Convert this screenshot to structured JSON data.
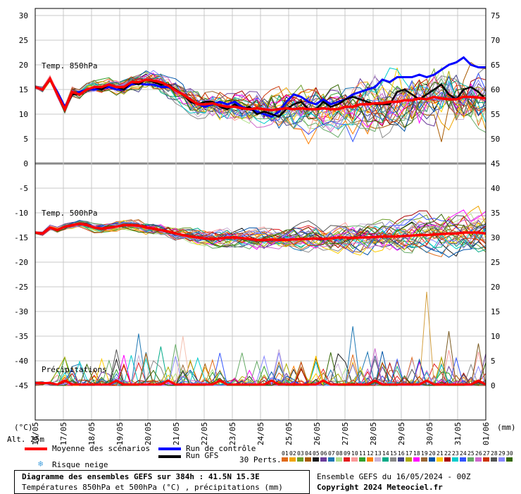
{
  "chart_data": {
    "type": "line",
    "x": [
      "16/05",
      "17/05",
      "18/05",
      "19/05",
      "20/05",
      "21/05",
      "22/05",
      "23/05",
      "24/05",
      "25/05",
      "26/05",
      "27/05",
      "28/05",
      "29/05",
      "30/05",
      "31/05",
      "01/06"
    ],
    "left_axis": {
      "unit": "(°C)",
      "ticks": [
        30,
        25,
        20,
        15,
        10,
        5,
        0,
        -5,
        -10,
        -15,
        -20,
        -25,
        -30,
        -35,
        -40,
        -45
      ]
    },
    "right_axis": {
      "unit": "(mm)",
      "ticks": [
        75,
        70,
        65,
        60,
        55,
        50,
        45,
        40,
        35,
        30,
        25,
        20,
        15,
        10,
        5,
        0
      ]
    },
    "panels": {
      "t850": {
        "label": "Temp. 850hPa",
        "mean": [
          15.5,
          15.0,
          17.2,
          14.0,
          11.0,
          14.5,
          14.0,
          15.0,
          15.5,
          15.5,
          16.0,
          15.5,
          15.5,
          16.5,
          16.5,
          17.0,
          16.8,
          16.5,
          15.8,
          14.8,
          14.0,
          13.0,
          12.0,
          12.0,
          12.2,
          11.8,
          11.5,
          11.5,
          11.2,
          11.0,
          11.2,
          11.0,
          10.8,
          11.0,
          11.2,
          11.0,
          11.2,
          11.0,
          11.0,
          11.2,
          11.0,
          11.0,
          11.5,
          11.5,
          12.0,
          12.0,
          12.2,
          12.2,
          12.5,
          12.5,
          12.8,
          12.8,
          13.2,
          13.0,
          13.5,
          13.2,
          13.0,
          13.0,
          13.5,
          13.5,
          13.4,
          13.2
        ],
        "control": [
          15.5,
          15.0,
          17.0,
          14.5,
          11.5,
          14.0,
          14.5,
          15.0,
          15.0,
          15.2,
          15.5,
          15.0,
          15.0,
          16.0,
          16.2,
          16.0,
          16.0,
          15.5,
          15.5,
          15.0,
          14.0,
          13.0,
          12.0,
          11.5,
          12.0,
          12.5,
          12.0,
          12.5,
          11.5,
          11.0,
          10.5,
          10.0,
          9.5,
          10.5,
          12.5,
          14.0,
          13.5,
          12.5,
          12.0,
          13.0,
          12.0,
          12.5,
          13.0,
          14.0,
          14.5,
          15.0,
          15.5,
          17.0,
          16.5,
          17.5,
          17.5,
          17.5,
          18.0,
          17.5,
          18.0,
          19.0,
          20.0,
          20.5,
          21.5,
          20.0,
          19.5,
          19.5
        ],
        "gfs": [
          15.5,
          15.0,
          17.0,
          14.0,
          11.0,
          14.0,
          14.0,
          15.0,
          15.5,
          15.0,
          16.0,
          15.5,
          15.0,
          16.5,
          16.0,
          17.0,
          16.5,
          16.0,
          16.0,
          15.0,
          14.0,
          12.5,
          12.0,
          12.5,
          12.5,
          11.5,
          11.0,
          12.0,
          11.0,
          11.5,
          10.0,
          10.5,
          10.0,
          9.5,
          11.0,
          12.0,
          12.5,
          11.0,
          11.0,
          12.5,
          11.5,
          12.0,
          13.0,
          13.5,
          13.0,
          12.5,
          12.0,
          12.0,
          12.0,
          14.5,
          15.0,
          14.0,
          13.0,
          14.0,
          15.0,
          16.0,
          14.0,
          13.0,
          15.0,
          15.5,
          14.5,
          13.0
        ]
      },
      "t500": {
        "label": "Temp. 500hPa",
        "mean": [
          -14.0,
          -14.2,
          -13.0,
          -13.5,
          -12.8,
          -12.5,
          -12.2,
          -12.5,
          -13.0,
          -13.2,
          -13.0,
          -12.8,
          -12.5,
          -12.5,
          -12.6,
          -13.0,
          -13.2,
          -13.5,
          -13.8,
          -14.2,
          -14.5,
          -14.8,
          -15.0,
          -15.2,
          -15.3,
          -15.2,
          -15.0,
          -15.0,
          -15.1,
          -15.3,
          -15.5,
          -15.5,
          -15.4,
          -15.5,
          -15.5,
          -15.4,
          -15.3,
          -15.3,
          -15.2,
          -15.3,
          -15.2,
          -15.0,
          -15.0,
          -15.1,
          -15.0,
          -15.0,
          -14.9,
          -14.8,
          -14.8,
          -14.8,
          -14.7,
          -14.6,
          -14.5,
          -14.5,
          -14.4,
          -14.3,
          -14.2,
          -14.2,
          -14.0,
          -14.0,
          -14.0,
          -14.2
        ]
      },
      "precip": {
        "label": "Précipitations"
      }
    },
    "altitude_label": "Alt. 25m",
    "n_perturbations": 30
  },
  "legend": {
    "mean": "Moyenne des scénarios",
    "control": "Run de contrôle",
    "gfs": "Run GFS",
    "snow": "Risque neige",
    "perts": "30 Perts.",
    "pert_numbers": [
      "01",
      "02",
      "03",
      "04",
      "05",
      "06",
      "07",
      "08",
      "09",
      "10",
      "11",
      "12",
      "13",
      "14",
      "15",
      "16",
      "17",
      "18",
      "19",
      "20",
      "21",
      "22",
      "23",
      "24",
      "25",
      "26",
      "27",
      "28",
      "29",
      "30"
    ],
    "pert_colors": [
      "#e06a1a",
      "#f0a500",
      "#6b9e2a",
      "#a85a00",
      "#1a1a1a",
      "#6a3d9a",
      "#1f78b4",
      "#b2df8a",
      "#e31a1c",
      "#fb9a99",
      "#33a02c",
      "#ff7f00",
      "#cab2d6",
      "#00aa88",
      "#888888",
      "#444488",
      "#aaaa00",
      "#ff00ff",
      "#996633",
      "#0055aa",
      "#ffcc00",
      "#aa0000",
      "#00cccc",
      "#3355ff",
      "#66aa66",
      "#cc66cc",
      "#cc3300",
      "#555555",
      "#8888ff",
      "#336600"
    ],
    "mean_color": "#ff0000",
    "control_color": "#0000ff",
    "gfs_color": "#000000"
  },
  "footer": {
    "title": "Diagramme des ensembles GEFS sur 384h : 41.5N 15.3E",
    "subtitle": "Températures 850hPa et 500hPa (°C) , précipitations (mm)",
    "run": "Ensemble GEFS du 16/05/2024 - 00Z",
    "copyright": "Copyright 2024 Meteociel.fr"
  }
}
